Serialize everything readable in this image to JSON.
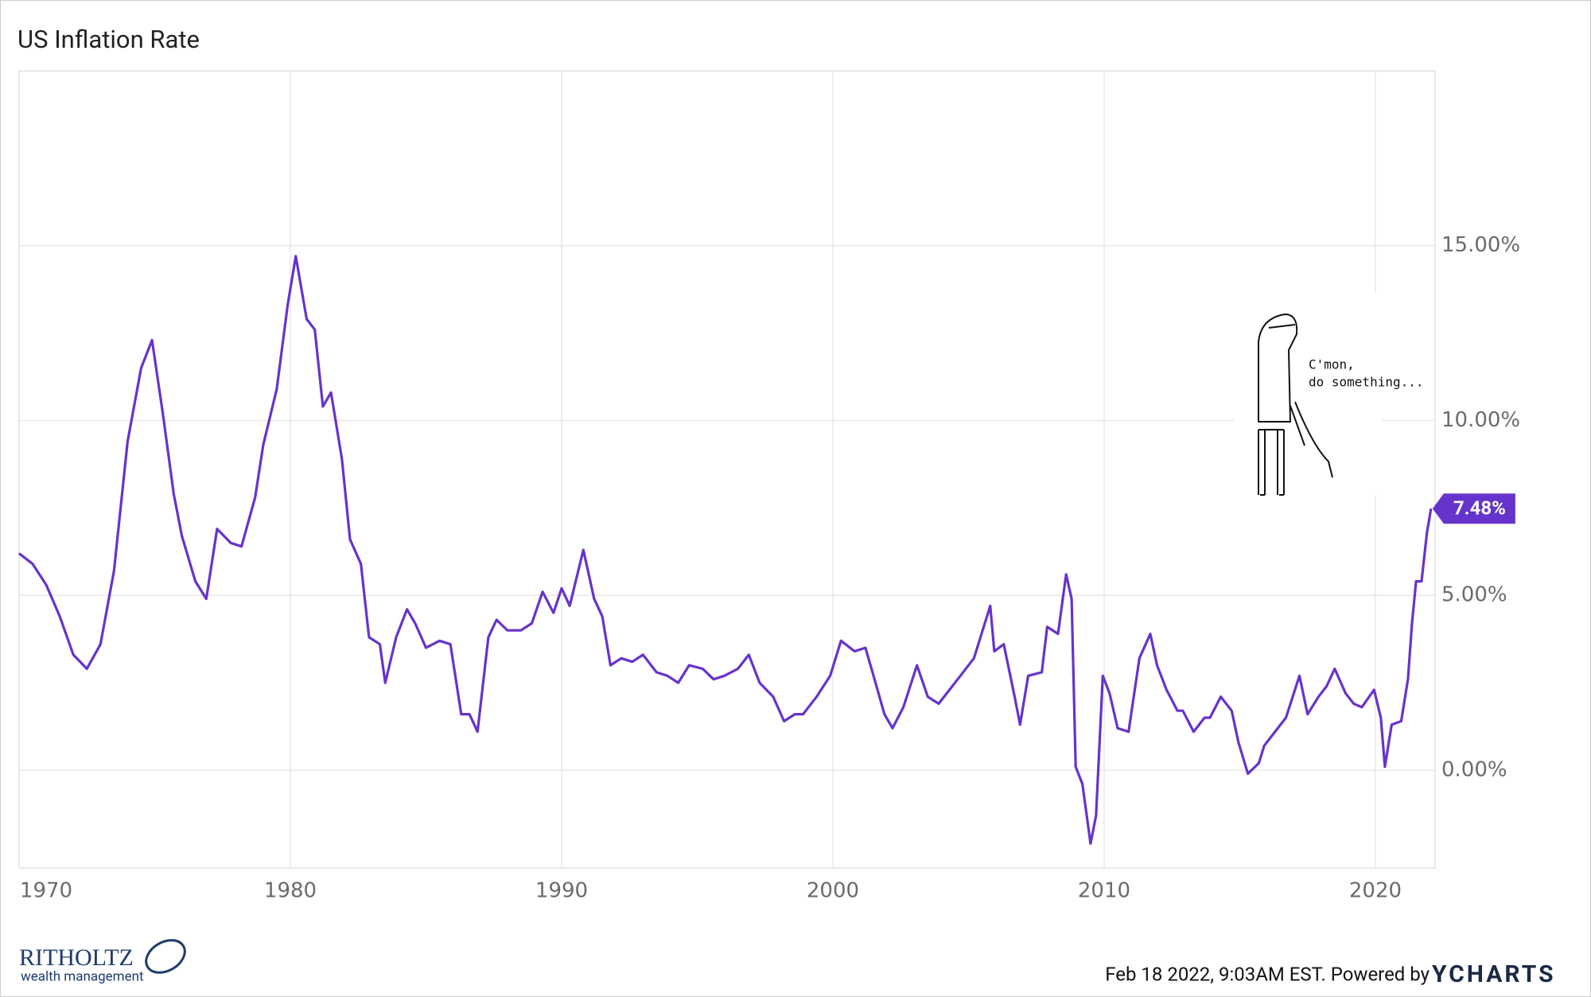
{
  "chart_data": {
    "type": "line",
    "title": "US Inflation Rate",
    "x": [
      1970.0,
      1970.5,
      1971.0,
      1971.5,
      1972.0,
      1972.5,
      1973.0,
      1973.5,
      1974.0,
      1974.5,
      1974.9,
      1975.3,
      1975.7,
      1976.0,
      1976.5,
      1976.9,
      1977.3,
      1977.8,
      1978.2,
      1978.7,
      1979.0,
      1979.5,
      1979.9,
      1980.2,
      1980.6,
      1980.9,
      1981.2,
      1981.5,
      1981.9,
      1982.2,
      1982.6,
      1982.9,
      1983.3,
      1983.5,
      1983.9,
      1984.3,
      1984.6,
      1985.0,
      1985.5,
      1985.9,
      1986.3,
      1986.6,
      1986.9,
      1987.3,
      1987.6,
      1988.0,
      1988.5,
      1988.9,
      1989.3,
      1989.7,
      1990.0,
      1990.3,
      1990.8,
      1991.2,
      1991.5,
      1991.8,
      1992.2,
      1992.6,
      1993.0,
      1993.5,
      1993.9,
      1994.3,
      1994.7,
      1995.2,
      1995.6,
      1996.0,
      1996.5,
      1996.9,
      1997.3,
      1997.8,
      1998.2,
      1998.6,
      1998.9,
      1999.4,
      1999.9,
      2000.3,
      2000.8,
      2001.2,
      2001.5,
      2001.9,
      2002.2,
      2002.6,
      2003.1,
      2003.5,
      2003.9,
      2004.3,
      2004.7,
      2005.2,
      2005.8,
      2005.95,
      2006.3,
      2006.7,
      2006.9,
      2007.2,
      2007.7,
      2007.9,
      2008.3,
      2008.6,
      2008.8,
      2008.95,
      2009.2,
      2009.5,
      2009.7,
      2009.95,
      2010.2,
      2010.5,
      2010.9,
      2011.3,
      2011.7,
      2011.95,
      2012.3,
      2012.7,
      2012.9,
      2013.3,
      2013.7,
      2013.9,
      2014.3,
      2014.7,
      2014.95,
      2015.3,
      2015.7,
      2015.9,
      2016.3,
      2016.7,
      2016.95,
      2017.2,
      2017.5,
      2017.9,
      2018.2,
      2018.5,
      2018.9,
      2019.2,
      2019.5,
      2019.95,
      2020.2,
      2020.35,
      2020.6,
      2020.95,
      2021.2,
      2021.35,
      2021.5,
      2021.7,
      2021.9,
      2022.05
    ],
    "series": [
      {
        "name": "US Inflation Rate",
        "color": "#6633cc",
        "values": [
          6.2,
          5.9,
          5.3,
          4.4,
          3.3,
          2.9,
          3.6,
          5.7,
          9.4,
          11.5,
          12.3,
          10.2,
          7.9,
          6.7,
          5.4,
          4.9,
          6.9,
          6.5,
          6.4,
          7.8,
          9.3,
          10.9,
          13.3,
          14.7,
          12.9,
          12.6,
          10.4,
          10.8,
          8.9,
          6.6,
          5.9,
          3.8,
          3.6,
          2.5,
          3.8,
          4.6,
          4.2,
          3.5,
          3.7,
          3.6,
          1.6,
          1.6,
          1.1,
          3.8,
          4.3,
          4.0,
          4.0,
          4.2,
          5.1,
          4.5,
          5.2,
          4.7,
          6.3,
          4.9,
          4.4,
          3.0,
          3.2,
          3.1,
          3.3,
          2.8,
          2.7,
          2.5,
          3.0,
          2.9,
          2.6,
          2.7,
          2.9,
          3.3,
          2.5,
          2.1,
          1.4,
          1.6,
          1.6,
          2.1,
          2.7,
          3.7,
          3.4,
          3.5,
          2.7,
          1.6,
          1.2,
          1.8,
          3.0,
          2.1,
          1.9,
          2.3,
          2.7,
          3.2,
          4.7,
          3.4,
          3.6,
          2.1,
          1.3,
          2.7,
          2.8,
          4.1,
          3.9,
          5.6,
          4.9,
          0.1,
          -0.4,
          -2.1,
          -1.3,
          2.7,
          2.2,
          1.2,
          1.1,
          3.2,
          3.9,
          3.0,
          2.3,
          1.7,
          1.7,
          1.1,
          1.5,
          1.5,
          2.1,
          1.7,
          0.8,
          -0.1,
          0.2,
          0.7,
          1.1,
          1.5,
          2.1,
          2.7,
          1.6,
          2.1,
          2.4,
          2.9,
          2.2,
          1.9,
          1.8,
          2.3,
          1.5,
          0.1,
          1.3,
          1.4,
          2.6,
          4.2,
          5.4,
          5.4,
          6.8,
          7.48
        ],
        "value_labels": [
          null,
          null,
          null,
          null,
          null,
          null,
          null,
          null,
          null,
          null,
          null,
          null,
          null,
          null,
          null,
          null,
          null,
          null,
          null,
          null,
          null,
          null,
          null,
          null,
          null,
          null,
          null,
          null,
          null,
          null,
          null,
          null,
          null,
          null,
          null,
          null,
          null,
          null,
          null,
          null,
          null,
          null,
          null,
          null,
          null,
          null,
          null,
          null,
          null,
          null,
          null,
          null,
          null,
          null,
          null,
          null,
          null,
          null,
          null,
          null,
          null,
          null,
          null,
          null,
          null,
          null,
          null,
          null,
          null,
          null,
          null,
          null,
          null,
          null,
          null,
          null,
          null,
          null,
          null,
          null,
          null,
          null,
          null,
          null,
          null,
          null,
          null,
          null,
          null,
          null,
          null,
          null,
          null,
          null,
          null,
          null,
          null,
          null,
          null,
          null,
          null,
          null,
          null,
          null,
          null,
          null,
          null,
          null,
          null,
          null,
          null,
          null,
          null,
          null,
          null,
          null,
          null,
          null,
          null,
          null,
          null,
          null,
          null,
          null,
          null,
          null,
          null,
          null,
          null,
          null,
          null,
          null,
          null,
          null,
          null,
          null,
          null,
          null,
          null,
          null,
          null,
          null,
          null,
          "7.48%"
        ]
      }
    ],
    "xlim": [
      1970.0,
      2022.2
    ],
    "xticks": [
      1970,
      1980,
      1990,
      2000,
      2010,
      2020
    ],
    "ylim": [
      -2.8,
      20
    ],
    "yticks": [
      {
        "value": 0,
        "label": "0.00%"
      },
      {
        "value": 5,
        "label": "5.00%"
      },
      {
        "value": 10,
        "label": "10.00%"
      },
      {
        "value": 15,
        "label": "15.00%"
      }
    ],
    "grid": true
  },
  "cartoon": {
    "line1": "C'mon,",
    "line2": "do something..."
  },
  "footer": {
    "logo_name": "RITHOLTZ",
    "logo_sub": "wealth management",
    "timestamp": "Feb 18 2022, 9:03AM EST. Powered by",
    "brand": "YCHARTS"
  }
}
